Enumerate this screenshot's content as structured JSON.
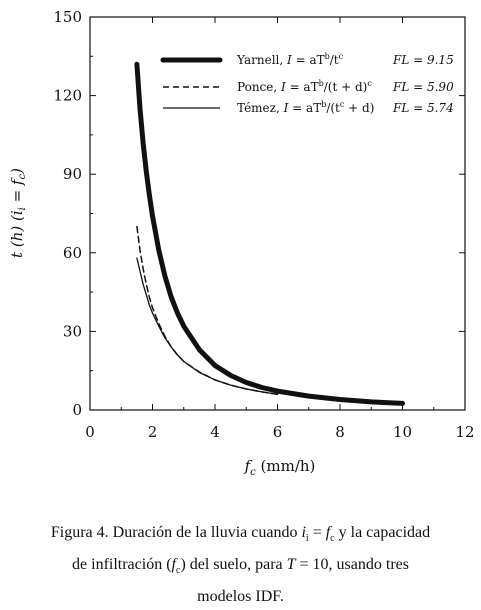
{
  "chart_data": {
    "type": "line",
    "xlabel": "f_c (mm/h)",
    "xlabel_main": "f",
    "xlabel_sub": "c",
    "xlabel_unit": " (mm/h)",
    "ylabel": "t (h) (i_i = f_c)",
    "xlim": [
      0,
      12
    ],
    "ylim": [
      0,
      150
    ],
    "xticks": [
      0,
      2,
      4,
      6,
      8,
      10,
      12
    ],
    "yticks": [
      0,
      30,
      60,
      90,
      120,
      150
    ],
    "grid": false,
    "legend_position": "top-right",
    "series": [
      {
        "name": "Yarnell, I = aT^b / t^c",
        "fl": "FL = 9.15",
        "style": "thick-solid",
        "points": [
          [
            1.5,
            132
          ],
          [
            1.6,
            115
          ],
          [
            1.7,
            102
          ],
          [
            1.8,
            91
          ],
          [
            1.9,
            82
          ],
          [
            2.0,
            74
          ],
          [
            2.2,
            61
          ],
          [
            2.4,
            51
          ],
          [
            2.6,
            43
          ],
          [
            2.8,
            37
          ],
          [
            3.0,
            32
          ],
          [
            3.5,
            23
          ],
          [
            4.0,
            17
          ],
          [
            4.5,
            13.2
          ],
          [
            5.0,
            10.5
          ],
          [
            5.5,
            8.6
          ],
          [
            6.0,
            7.2
          ],
          [
            7.0,
            5.3
          ],
          [
            8.0,
            4.0
          ],
          [
            9.0,
            3.1
          ],
          [
            10.0,
            2.5
          ]
        ]
      },
      {
        "name": "Ponce, I = aT^b / (t + d)^c",
        "fl": "FL = 5.90",
        "style": "dashed",
        "points": [
          [
            1.5,
            70
          ],
          [
            1.6,
            61
          ],
          [
            1.7,
            54
          ],
          [
            1.8,
            48
          ],
          [
            1.9,
            43
          ],
          [
            2.0,
            39
          ],
          [
            2.2,
            33
          ],
          [
            2.4,
            28
          ],
          [
            2.6,
            24
          ],
          [
            2.8,
            21
          ],
          [
            3.0,
            18.5
          ],
          [
            3.5,
            14.5
          ],
          [
            4.0,
            11.5
          ],
          [
            4.5,
            9.5
          ],
          [
            5.0,
            8.0
          ],
          [
            5.5,
            6.9
          ],
          [
            6.0,
            6.0
          ]
        ]
      },
      {
        "name": "Témez, I = aT^b / (t^c + d)",
        "fl": "FL = 5.74",
        "style": "thin-solid",
        "points": [
          [
            1.5,
            58
          ],
          [
            1.6,
            53
          ],
          [
            1.7,
            48
          ],
          [
            1.8,
            44
          ],
          [
            1.9,
            40
          ],
          [
            2.0,
            37
          ],
          [
            2.2,
            32
          ],
          [
            2.4,
            27.5
          ],
          [
            2.6,
            24
          ],
          [
            2.8,
            21
          ],
          [
            3.0,
            18.5
          ],
          [
            3.5,
            14.3
          ],
          [
            4.0,
            11.5
          ],
          [
            4.5,
            9.5
          ],
          [
            5.0,
            8.0
          ],
          [
            5.5,
            6.9
          ],
          [
            6.0,
            6.0
          ]
        ]
      }
    ]
  },
  "legend": {
    "yarnell": {
      "label": "Yarnell, ",
      "formula_i": "I",
      "formula_rest": " = aT",
      "sup_b": "b",
      "formula_div": "/t",
      "sup_c": "c",
      "fl": "FL = 9.15"
    },
    "ponce": {
      "label": "Ponce, ",
      "formula_i": "I",
      "formula_rest": " = aT",
      "sup_b": "b",
      "formula_div": "/(t + d)",
      "sup_c": "c",
      "fl": "FL = 5.90"
    },
    "temez": {
      "label": "Témez, ",
      "formula_i": "I",
      "formula_rest": " = aT",
      "sup_b": "b",
      "formula_div": "/(t",
      "sup_c": "c",
      "formula_end": " + d)",
      "fl": "FL = 5.74"
    }
  },
  "caption": {
    "line1_a": "Figura 4. Duración de la lluvia cuando ",
    "line1_i": "i",
    "line1_i_sub": "i",
    "line1_eq": " = ",
    "line1_f": "f",
    "line1_f_sub": "c",
    "line1_b": " y la capacidad",
    "line2_a": "de infiltración (",
    "line2_f": "f",
    "line2_f_sub": "c",
    "line2_b": ") del suelo, para ",
    "line2_T": "T",
    "line2_c": " = 10,  usando tres",
    "line3": "modelos IDF."
  }
}
